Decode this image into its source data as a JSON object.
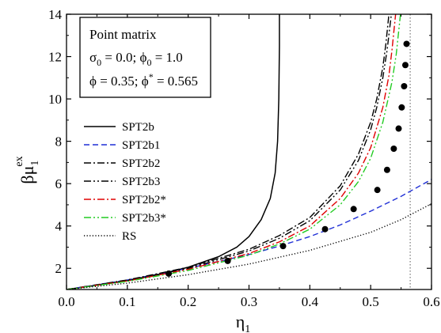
{
  "chart_data": {
    "type": "line",
    "xlim": [
      0.0,
      0.6
    ],
    "ylim": [
      1.0,
      14.0
    ],
    "x_ticks": [
      "0.0",
      "0.1",
      "0.2",
      "0.3",
      "0.4",
      "0.5",
      "0.6"
    ],
    "y_ticks": [
      "2",
      "4",
      "6",
      "8",
      "10",
      "12",
      "14"
    ],
    "x_tick_values": [
      0.0,
      0.1,
      0.2,
      0.3,
      0.4,
      0.5,
      0.6
    ],
    "y_tick_values": [
      2,
      4,
      6,
      8,
      10,
      12,
      14
    ],
    "xlabel": {
      "main": "η",
      "sub": "1"
    },
    "ylabel": {
      "main": "βμ",
      "sup": "ex",
      "sub": "1"
    },
    "infobox": {
      "line1": "Point matrix",
      "line2": {
        "a": "σ",
        "a_sub": "0",
        "b": " = 0.0; ",
        "c": "ϕ",
        "c_sub": "0",
        "d": " = 1.0"
      },
      "line3": {
        "a": "ϕ = 0.35; ",
        "b": "ϕ",
        "b_sup": "*",
        "c": " = 0.565"
      }
    },
    "vertical_reference_line": {
      "x": 0.565,
      "style": "dotted",
      "color": "#808080"
    },
    "legend_position": "left-center",
    "series": [
      {
        "name": "SPT2b",
        "color": "#000000",
        "dash": "solid",
        "x": [
          0.0,
          0.05,
          0.1,
          0.15,
          0.2,
          0.25,
          0.28,
          0.3,
          0.32,
          0.335,
          0.343,
          0.347,
          0.349,
          0.35,
          0.35
        ],
        "y": [
          1.0,
          1.2,
          1.42,
          1.7,
          2.05,
          2.55,
          3.0,
          3.5,
          4.3,
          5.3,
          6.5,
          8.0,
          10.0,
          12.5,
          14.0
        ]
      },
      {
        "name": "SPT2b1",
        "color": "#1f2fd6",
        "dash": "dashed",
        "x": [
          0.0,
          0.1,
          0.2,
          0.3,
          0.35,
          0.4,
          0.45,
          0.5,
          0.55,
          0.6
        ],
        "y": [
          1.0,
          1.45,
          2.0,
          2.65,
          3.05,
          3.5,
          4.05,
          4.7,
          5.4,
          6.2
        ]
      },
      {
        "name": "SPT2b2",
        "color": "#000000",
        "dash": "dashdot",
        "x": [
          0.0,
          0.1,
          0.2,
          0.3,
          0.35,
          0.4,
          0.45,
          0.48,
          0.5,
          0.51,
          0.52,
          0.525,
          0.53
        ],
        "y": [
          1.0,
          1.45,
          2.05,
          2.9,
          3.55,
          4.4,
          5.9,
          7.4,
          8.9,
          10.0,
          11.5,
          12.6,
          14.0
        ]
      },
      {
        "name": "SPT2b3",
        "color": "#000000",
        "dash": "dashdotdot",
        "x": [
          0.0,
          0.1,
          0.2,
          0.3,
          0.35,
          0.4,
          0.45,
          0.48,
          0.5,
          0.51,
          0.52,
          0.527,
          0.534
        ],
        "y": [
          1.0,
          1.42,
          2.0,
          2.82,
          3.42,
          4.25,
          5.7,
          7.1,
          8.55,
          9.6,
          11.0,
          12.3,
          14.0
        ]
      },
      {
        "name": "SPT2b2*",
        "color": "#e00000",
        "dash": "dashdot",
        "x": [
          0.0,
          0.1,
          0.2,
          0.3,
          0.35,
          0.4,
          0.45,
          0.48,
          0.5,
          0.52,
          0.53,
          0.535,
          0.541
        ],
        "y": [
          1.0,
          1.4,
          1.95,
          2.7,
          3.25,
          4.0,
          5.3,
          6.5,
          7.7,
          9.6,
          11.1,
          12.3,
          14.0
        ]
      },
      {
        "name": "SPT2b3*",
        "color": "#22cc22",
        "dash": "dashdotdot",
        "x": [
          0.0,
          0.1,
          0.2,
          0.3,
          0.35,
          0.4,
          0.45,
          0.48,
          0.5,
          0.52,
          0.535,
          0.542,
          0.549
        ],
        "y": [
          1.0,
          1.38,
          1.9,
          2.62,
          3.15,
          3.85,
          5.0,
          6.1,
          7.2,
          8.9,
          10.8,
          12.1,
          14.0
        ]
      },
      {
        "name": "RS",
        "color": "#000000",
        "dash": "dotted",
        "x": [
          0.0,
          0.1,
          0.2,
          0.3,
          0.4,
          0.5,
          0.55,
          0.6
        ],
        "y": [
          1.0,
          1.3,
          1.7,
          2.2,
          2.85,
          3.7,
          4.3,
          5.05
        ]
      }
    ],
    "points": {
      "marker": "filled-circle",
      "color": "#000000",
      "x": [
        0.168,
        0.265,
        0.356,
        0.425,
        0.472,
        0.511,
        0.527,
        0.538,
        0.546,
        0.551,
        0.555,
        0.557,
        0.559
      ],
      "y": [
        1.75,
        2.35,
        3.05,
        3.85,
        4.8,
        5.7,
        6.65,
        7.65,
        8.6,
        9.6,
        10.6,
        11.6,
        12.6
      ]
    }
  }
}
